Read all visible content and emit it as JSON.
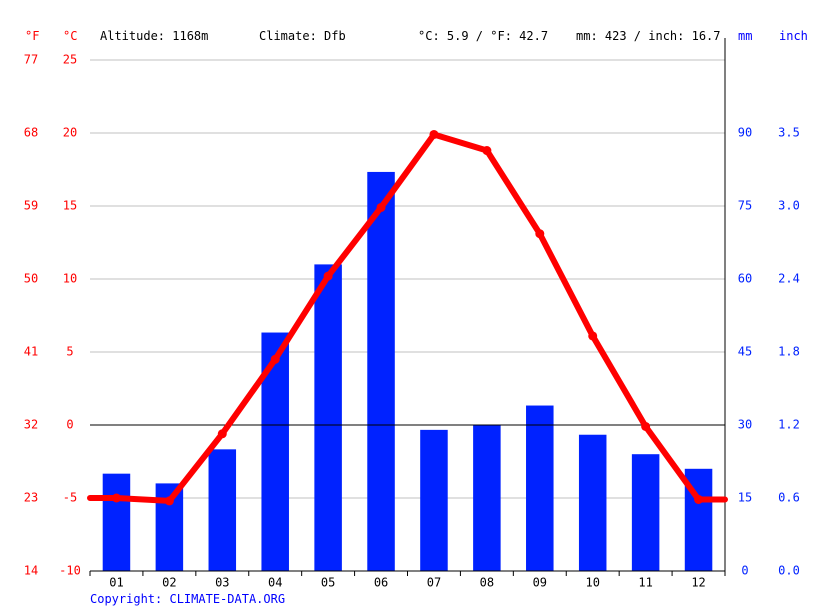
{
  "header": {
    "unit_f": "°F",
    "unit_c": "°C",
    "altitude": "Altitude: 1168m",
    "climate": "Climate: Dfb",
    "temp_avg": "°C: 5.9 / °F: 42.7",
    "precip_total": "mm: 423 / inch: 16.7",
    "unit_mm": "mm",
    "unit_inch": "inch"
  },
  "copyright": "Copyright: CLIMATE-DATA.ORG",
  "colors": {
    "temperature": "#ff0000",
    "precipitation": "#0022ff",
    "grid": "#c0c0c0",
    "zero_line": "#000000",
    "temp_axis_text": "#ff0000",
    "precip_axis_text": "#0022ff"
  },
  "chart_data": {
    "type": "bar+line",
    "categories": [
      "01",
      "02",
      "03",
      "04",
      "05",
      "06",
      "07",
      "08",
      "09",
      "10",
      "11",
      "12"
    ],
    "series": [
      {
        "name": "",
        "type": "bar",
        "axis": "precipitation_mm",
        "values": [
          20,
          18,
          25,
          49,
          63,
          82,
          29,
          30,
          34,
          28,
          24,
          21
        ]
      },
      {
        "name": "",
        "type": "line",
        "axis": "temperature_c",
        "values": [
          -5.0,
          -5.2,
          -0.6,
          4.5,
          10.2,
          14.9,
          19.9,
          18.8,
          13.1,
          6.1,
          -0.1,
          -5.1
        ]
      }
    ],
    "y_left_c": {
      "ticks": [
        25,
        20,
        15,
        10,
        5,
        0,
        -5,
        -10
      ],
      "ylim": [
        -10,
        25
      ]
    },
    "y_left_f": {
      "ticks": [
        77,
        68,
        59,
        50,
        41,
        32,
        23,
        14
      ]
    },
    "y_right_mm": {
      "ticks": [
        90,
        75,
        60,
        45,
        30,
        15,
        0
      ],
      "ylim": [
        0,
        105
      ]
    },
    "y_right_inch": {
      "ticks": [
        "3.5",
        "3.0",
        "2.4",
        "1.8",
        "1.2",
        "0.6",
        "0.0"
      ]
    },
    "grid": true
  }
}
